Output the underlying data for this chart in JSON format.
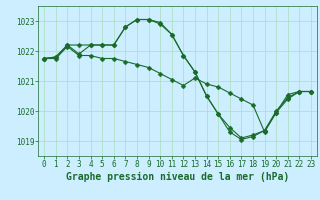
{
  "bg_color": "#cceeff",
  "grid_color": "#aaddbb",
  "line_color": "#1a6b2a",
  "marker_color": "#1a6b2a",
  "xlabel": "Graphe pression niveau de la mer (hPa)",
  "ylim": [
    1018.5,
    1023.5
  ],
  "xlim": [
    -0.5,
    23.5
  ],
  "yticks": [
    1019,
    1020,
    1021,
    1022,
    1023
  ],
  "xticks": [
    0,
    1,
    2,
    3,
    4,
    5,
    6,
    7,
    8,
    9,
    10,
    11,
    12,
    13,
    14,
    15,
    16,
    17,
    18,
    19,
    20,
    21,
    22,
    23
  ],
  "series": [
    [
      1021.75,
      1021.75,
      1022.15,
      1021.85,
      1021.85,
      1021.75,
      1021.75,
      1021.65,
      1021.55,
      1021.45,
      1021.25,
      1021.05,
      1020.85,
      1021.1,
      1020.9,
      1020.8,
      1020.6,
      1020.4,
      1020.2,
      1019.3,
      1019.95,
      1020.55,
      1020.65,
      1020.65
    ],
    [
      1021.75,
      1021.8,
      1022.2,
      1021.9,
      1022.2,
      1022.2,
      1022.2,
      1022.8,
      1023.05,
      1023.05,
      1022.9,
      1022.55,
      1021.85,
      1021.3,
      1020.5,
      1019.9,
      1019.45,
      1019.1,
      1019.2,
      1019.35,
      1019.95,
      1020.4,
      1020.65,
      1020.65
    ],
    [
      1021.75,
      1021.8,
      1022.2,
      1022.2,
      1022.2,
      1022.2,
      1022.2,
      1022.8,
      1023.05,
      1023.05,
      1022.95,
      1022.55,
      1021.85,
      1021.3,
      1020.5,
      1019.9,
      1019.3,
      1019.05,
      1019.15,
      1019.35,
      1020.0,
      1020.45,
      1020.65,
      1020.65
    ]
  ],
  "markersize": 2.5,
  "linewidth": 0.8,
  "xlabel_fontsize": 7,
  "tick_fontsize": 5.5
}
